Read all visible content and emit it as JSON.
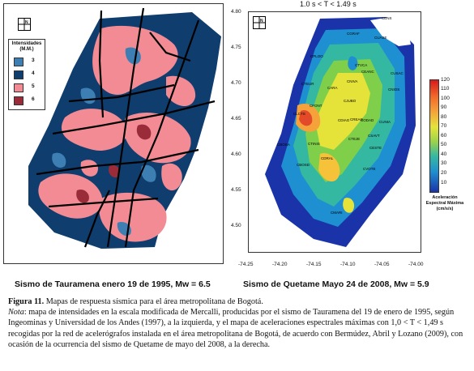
{
  "left_map": {
    "legend_title": "Intensidades (M.M.)",
    "legend": [
      {
        "label": "3",
        "color": "#3d7fb3"
      },
      {
        "label": "4",
        "color": "#0f3d6e"
      },
      {
        "label": "5",
        "color": "#f28b93"
      },
      {
        "label": "6",
        "color": "#9a2c3a"
      }
    ],
    "north_label": "N",
    "caption": "Sismo de Tauramena enero 19 de 1995, Mw = 6.5"
  },
  "right_map": {
    "title": "1.0 s < T < 1.49 s",
    "north_label": "N",
    "y_ticks": [
      "4.80",
      "4.75",
      "4.70",
      "4.65",
      "4.60",
      "4.55",
      "4.50"
    ],
    "x_ticks": [
      "-74.25",
      "-74.20",
      "-74.15",
      "-74.10",
      "-74.05",
      "-74.00"
    ],
    "colorbar_ticks": [
      "120",
      "110",
      "100",
      "90",
      "80",
      "70",
      "60",
      "50",
      "40",
      "30",
      "20",
      "10"
    ],
    "colorbar_title": "Aceleración Espectral Máxima (cm/s/s)",
    "stations": [
      "CENS",
      "CGRAF",
      "CUASE",
      "CPLOO",
      "CTVCA",
      "CEANC",
      "CUSAC",
      "CTEUR",
      "CARA",
      "CNIVA",
      "CNIOS",
      "CFONT",
      "CJUBO",
      "CLCTS",
      "CDIAG",
      "CREAG",
      "CODAD",
      "CUNIA",
      "CBOSA",
      "CTINIS",
      "CTEJE",
      "CSAVT",
      "CESTE",
      "CDRAL",
      "CBOSD",
      "CVOTE",
      "CMARI"
    ],
    "caption": "Sismo de Quetame Mayo 24 de 2008, Mw = 5.9"
  },
  "figure": {
    "label": "Figura 11.",
    "title": "Mapas de respuesta sísmica para el área metropolitana de Bogotá.",
    "note_label": "Nota",
    "note_text": ": mapa de intensidades en la escala modificada de Mercalli, producidas por el sismo de Tauramena del 19 de enero de 1995, según Ingeominas y Universidad de los Andes (1997), a la izquierda, y el mapa de aceleraciones espectrales máximas con 1,0 < T < 1,49 s recogidas por la red de acelerógrafos instalada en el área metropolitana de Bogotá, de acuerdo con Bermúdez, Abril y Lozano (2009), con ocasión de la ocurrencia del sismo de Quetame de mayo del 2008, a la derecha."
  }
}
